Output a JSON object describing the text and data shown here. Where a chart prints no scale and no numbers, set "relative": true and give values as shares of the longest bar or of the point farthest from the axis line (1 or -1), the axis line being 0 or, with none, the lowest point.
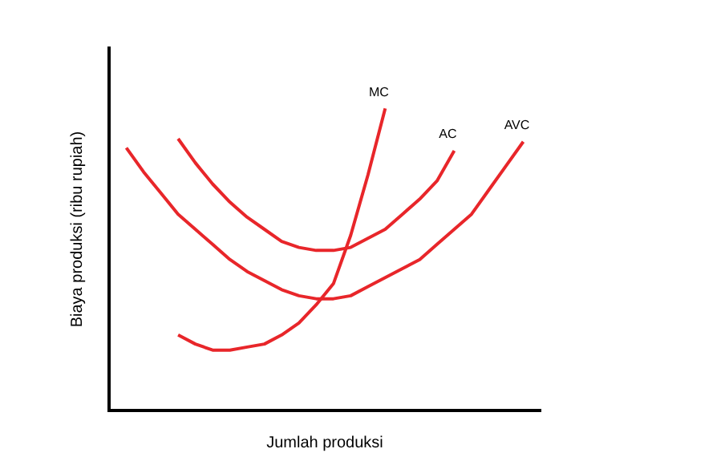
{
  "chart_data": {
    "type": "line",
    "relative": true,
    "xlabel": "Jumlah produksi",
    "ylabel": "Biaya produksi (ribu rupiah)",
    "categories": [
      null,
      null,
      null,
      null,
      null,
      null,
      null,
      null,
      null,
      null,
      null,
      null,
      null,
      null,
      null,
      null,
      null,
      null,
      null,
      null,
      null,
      null,
      null,
      null,
      null,
      null
    ],
    "series": [
      {
        "name": "MC",
        "color": "#e8262a",
        "values": [
          null,
          null,
          null,
          null,
          0.25,
          0.22,
          0.2,
          0.2,
          0.21,
          0.22,
          0.25,
          0.29,
          0.35,
          0.42,
          0.58,
          0.78,
          1,
          null,
          null,
          null,
          null,
          null,
          null,
          null,
          null,
          null
        ]
      },
      {
        "name": "AC",
        "color": "#e8262a",
        "values": [
          null,
          null,
          null,
          null,
          0.9,
          0.82,
          0.75,
          0.69,
          0.64,
          0.6,
          0.56,
          0.54,
          0.53,
          0.53,
          0.54,
          0.57,
          0.6,
          0.65,
          0.7,
          0.76,
          0.86,
          null,
          null,
          null,
          null,
          null
        ]
      },
      {
        "name": "AVC",
        "color": "#e8262a",
        "values": [
          null,
          0.87,
          0.79,
          0.72,
          0.65,
          0.6,
          0.55,
          0.5,
          0.46,
          0.43,
          0.4,
          0.38,
          0.37,
          0.37,
          0.38,
          0.41,
          0.44,
          0.47,
          0.5,
          0.55,
          0.6,
          0.65,
          0.73,
          0.81,
          0.89,
          null
        ]
      }
    ],
    "grid": false,
    "legend": false,
    "marker": "none",
    "line_style": "solid"
  }
}
